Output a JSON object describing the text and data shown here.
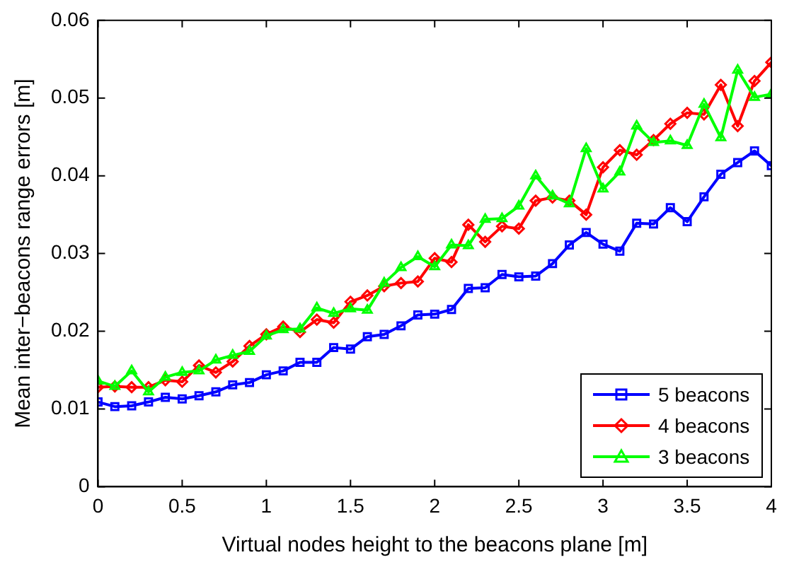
{
  "chart_data": {
    "type": "line",
    "xlabel": "Virtual nodes height to the beacons plane [m]",
    "ylabel": "Mean inter−beacons range errors [m]",
    "x": [
      0,
      0.1,
      0.2,
      0.3,
      0.4,
      0.5,
      0.6,
      0.7,
      0.8,
      0.9,
      1,
      1.1,
      1.2,
      1.3,
      1.4,
      1.5,
      1.6,
      1.7,
      1.8,
      1.9,
      2,
      2.1,
      2.2,
      2.3,
      2.4,
      2.5,
      2.6,
      2.7,
      2.8,
      2.9,
      3,
      3.1,
      3.2,
      3.3,
      3.4,
      3.5,
      3.6,
      3.7,
      3.8,
      3.9,
      4
    ],
    "series": [
      {
        "name": "5 beacons",
        "color": "#0000ff",
        "marker": "square",
        "values": [
          0.0109,
          0.0103,
          0.0104,
          0.0109,
          0.0115,
          0.0113,
          0.0117,
          0.0122,
          0.0131,
          0.0134,
          0.0144,
          0.0149,
          0.016,
          0.016,
          0.0179,
          0.0177,
          0.0193,
          0.0196,
          0.0207,
          0.0221,
          0.0222,
          0.0228,
          0.0255,
          0.0256,
          0.0273,
          0.027,
          0.0271,
          0.0287,
          0.0311,
          0.0327,
          0.0312,
          0.0303,
          0.0339,
          0.0338,
          0.0359,
          0.0341,
          0.0373,
          0.0402,
          0.0417,
          0.0432,
          0.0413
        ]
      },
      {
        "name": "4 beacons",
        "color": "#ff0000",
        "marker": "diamond",
        "values": [
          0.0128,
          0.0129,
          0.0128,
          0.0128,
          0.0137,
          0.0135,
          0.0156,
          0.0147,
          0.0161,
          0.0181,
          0.0196,
          0.0206,
          0.0199,
          0.0215,
          0.0211,
          0.0238,
          0.0246,
          0.0258,
          0.0262,
          0.0264,
          0.0294,
          0.0289,
          0.0337,
          0.0315,
          0.0335,
          0.0332,
          0.0368,
          0.0372,
          0.0368,
          0.035,
          0.0411,
          0.0433,
          0.0427,
          0.0446,
          0.0467,
          0.0481,
          0.0479,
          0.0517,
          0.0464,
          0.0522,
          0.0546
        ]
      },
      {
        "name": "3 beacons",
        "color": "#00ff00",
        "marker": "triangle",
        "values": [
          0.0136,
          0.0129,
          0.0149,
          0.0122,
          0.0141,
          0.0147,
          0.0149,
          0.0163,
          0.0169,
          0.0174,
          0.0194,
          0.0202,
          0.0203,
          0.023,
          0.0223,
          0.0229,
          0.0227,
          0.0262,
          0.0282,
          0.0296,
          0.0283,
          0.0311,
          0.031,
          0.0344,
          0.0345,
          0.0361,
          0.04,
          0.0374,
          0.0364,
          0.0435,
          0.0383,
          0.0405,
          0.0464,
          0.0443,
          0.0445,
          0.0439,
          0.0492,
          0.0449,
          0.0536,
          0.0501,
          0.0505
        ]
      }
    ],
    "xlim": [
      0,
      4
    ],
    "xticks": [
      0,
      0.5,
      1,
      1.5,
      2,
      2.5,
      3,
      3.5,
      4
    ],
    "ylim": [
      0,
      0.06
    ],
    "yticks": [
      0,
      0.01,
      0.02,
      0.03,
      0.04,
      0.05,
      0.06
    ],
    "grid": false,
    "legend": "bottom right",
    "line_style": "solid"
  }
}
